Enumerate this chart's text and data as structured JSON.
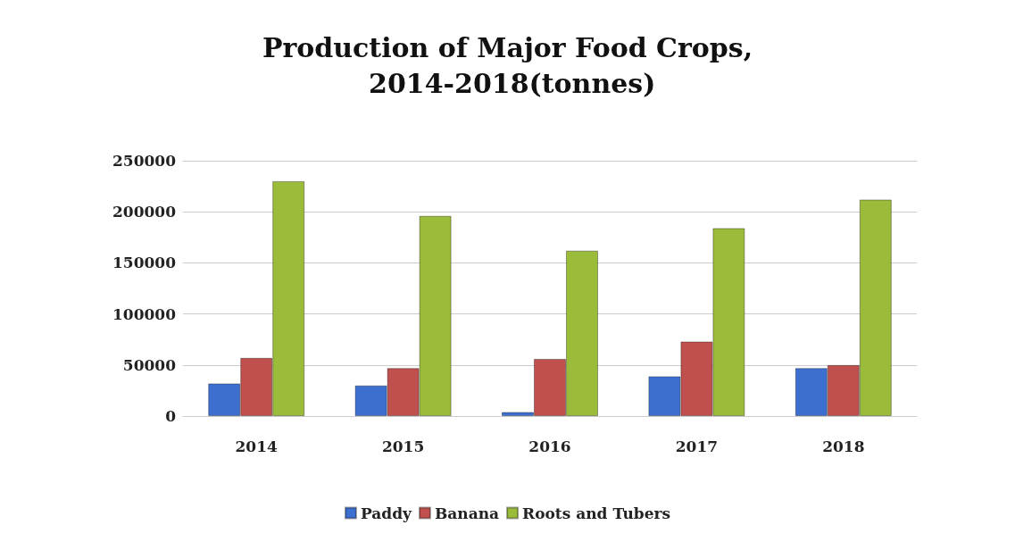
{
  "chart_data": {
    "type": "bar",
    "title": "Production of Major Food Crops, 2014-2018(tonnes)",
    "categories": [
      "2014",
      "2015",
      "2016",
      "2017",
      "2018"
    ],
    "series": [
      {
        "name": "Paddy",
        "color": "#3d6fd0",
        "values": [
          32000,
          30000,
          4000,
          39000,
          47000
        ]
      },
      {
        "name": "Banana",
        "color": "#c0504d",
        "values": [
          57000,
          47000,
          56000,
          73000,
          50000
        ]
      },
      {
        "name": "Roots and Tubers",
        "color": "#9bbb3a",
        "values": [
          230000,
          196000,
          162000,
          184000,
          212000
        ]
      }
    ],
    "ylim": [
      0,
      250000
    ],
    "yticks": [
      0,
      50000,
      100000,
      150000,
      200000,
      250000
    ],
    "grid": "y",
    "legend": "bottom"
  }
}
